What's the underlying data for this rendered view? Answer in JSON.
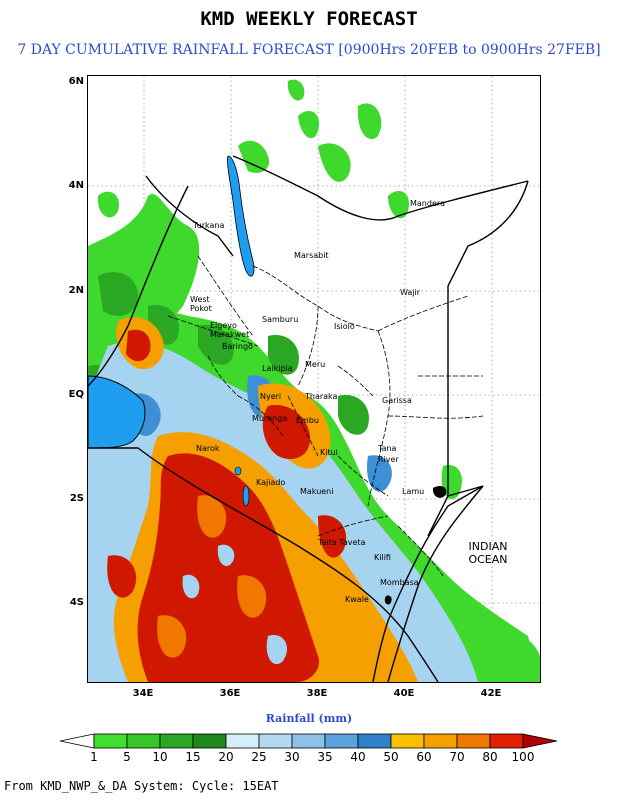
{
  "title": "KMD WEEKLY FORECAST",
  "subtitle": "7 DAY CUMULATIVE RAINFALL FORECAST [0900Hrs 20FEB to 0900Hrs 27FEB]",
  "lat_labels": [
    "6N",
    "4N",
    "2N",
    "EQ",
    "2S",
    "4S"
  ],
  "lon_labels": [
    "34E",
    "36E",
    "38E",
    "40E",
    "42E"
  ],
  "places": [
    "Mandera",
    "Turkana",
    "Marsabit",
    "Wajir",
    "West Pokot",
    "Elgeyo Marakwet",
    "Samburu",
    "Baringo",
    "Isiolo",
    "Laikipia",
    "Meru",
    "Tharaka",
    "Garissa",
    "Tana River",
    "Embu",
    "Kitui",
    "Makueni",
    "Lamu",
    "Taita Taveta",
    "Kilifi",
    "Mombasa",
    "Kwale",
    "Kajiado",
    "Narok",
    "Nyeri",
    "Muranga"
  ],
  "ocean_label": "INDIAN OCEAN",
  "colorbar": {
    "title": "Rainfall (mm)",
    "levels": [
      "1",
      "5",
      "10",
      "15",
      "20",
      "25",
      "30",
      "35",
      "40",
      "50",
      "60",
      "70",
      "80",
      "100"
    ],
    "colors": [
      "#ffffff",
      "#41e02d",
      "#35c728",
      "#2aa823",
      "#1e8a1c",
      "#d6eefa",
      "#b4daf0",
      "#8cc2e8",
      "#5aa3dc",
      "#2f80c8",
      "#f8c000",
      "#f5a000",
      "#f07800",
      "#e02000",
      "#b00000"
    ]
  },
  "footer": "From KMD_NWP_&_DA System: Cycle: 15EAT"
}
